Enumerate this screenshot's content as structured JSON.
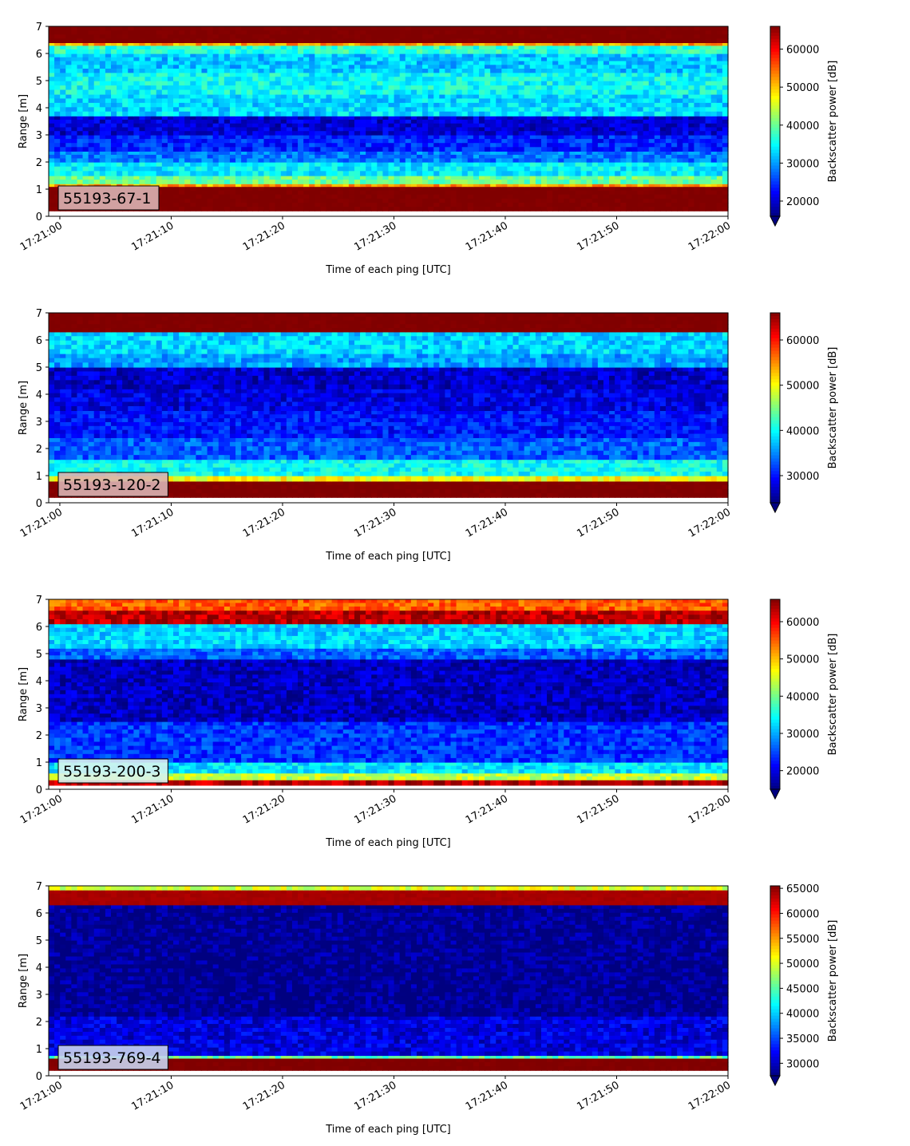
{
  "chart_data": [
    {
      "type": "heatmap",
      "panel_label": "55193-67-1",
      "panel_label_bg": "#d9b3b3",
      "xlabel": "Time of each ping [UTC]",
      "ylabel": "Range [m]",
      "x_ticks": [
        "17:21:00",
        "17:21:10",
        "17:21:20",
        "17:21:30",
        "17:21:40",
        "17:21:50",
        "17:22:00"
      ],
      "xlim": [
        "17:20:59",
        "17:22:00"
      ],
      "ylim": [
        0,
        7
      ],
      "y_ticks": [
        0,
        1,
        2,
        3,
        4,
        5,
        6,
        7
      ],
      "colorbar": {
        "label": "Backscatter power [dB]",
        "range": [
          16000,
          66000
        ],
        "ticks": [
          20000,
          30000,
          40000,
          50000,
          60000
        ],
        "extend": "min"
      },
      "colormap": "jet",
      "bands": [
        {
          "range_m": [
            0,
            0.2
          ],
          "value": 0,
          "blank": true
        },
        {
          "range_m": [
            0.2,
            1.1
          ],
          "value": 66000
        },
        {
          "range_m": [
            1.1,
            1.2
          ],
          "value": 52000
        },
        {
          "range_m": [
            1.2,
            1.5
          ],
          "value": 40000
        },
        {
          "range_m": [
            1.5,
            2.0
          ],
          "value": 34000
        },
        {
          "range_m": [
            2.0,
            2.4
          ],
          "value": 28000
        },
        {
          "range_m": [
            2.4,
            3.0
          ],
          "value": 24000
        },
        {
          "range_m": [
            3.0,
            3.7
          ],
          "value": 20000
        },
        {
          "range_m": [
            3.7,
            4.5
          ],
          "value": 33000
        },
        {
          "range_m": [
            4.5,
            5.3
          ],
          "value": 35000
        },
        {
          "range_m": [
            5.3,
            6.0
          ],
          "value": 32000
        },
        {
          "range_m": [
            6.0,
            6.3
          ],
          "value": 37000
        },
        {
          "range_m": [
            6.3,
            6.4
          ],
          "value": 52000
        },
        {
          "range_m": [
            6.4,
            7.0
          ],
          "value": 66000
        }
      ]
    },
    {
      "type": "heatmap",
      "panel_label": "55193-120-2",
      "panel_label_bg": "#d9b3b3",
      "xlabel": "Time of each ping [UTC]",
      "ylabel": "Range [m]",
      "x_ticks": [
        "17:21:00",
        "17:21:10",
        "17:21:20",
        "17:21:30",
        "17:21:40",
        "17:21:50",
        "17:22:00"
      ],
      "xlim": [
        "17:20:59",
        "17:22:00"
      ],
      "ylim": [
        0,
        7
      ],
      "y_ticks": [
        0,
        1,
        2,
        3,
        4,
        5,
        6,
        7
      ],
      "colorbar": {
        "label": "Backscatter power [dB]",
        "range": [
          24000,
          66000
        ],
        "ticks": [
          30000,
          40000,
          50000,
          60000
        ],
        "extend": "min"
      },
      "colormap": "jet",
      "bands": [
        {
          "range_m": [
            0,
            0.2
          ],
          "value": 0,
          "blank": true
        },
        {
          "range_m": [
            0.2,
            0.8
          ],
          "value": 66000
        },
        {
          "range_m": [
            0.8,
            1.0
          ],
          "value": 50000
        },
        {
          "range_m": [
            1.0,
            1.6
          ],
          "value": 40000
        },
        {
          "range_m": [
            1.6,
            2.4
          ],
          "value": 33000
        },
        {
          "range_m": [
            2.4,
            3.4
          ],
          "value": 30000
        },
        {
          "range_m": [
            3.4,
            4.2
          ],
          "value": 28000
        },
        {
          "range_m": [
            4.2,
            5.0
          ],
          "value": 27000
        },
        {
          "range_m": [
            5.0,
            5.5
          ],
          "value": 36000
        },
        {
          "range_m": [
            5.5,
            6.3
          ],
          "value": 38000
        },
        {
          "range_m": [
            6.3,
            7.0
          ],
          "value": 66000
        }
      ]
    },
    {
      "type": "heatmap",
      "panel_label": "55193-200-3",
      "panel_label_bg": "#d8f3ef",
      "xlabel": "Time of each ping [UTC]",
      "ylabel": "Range [m]",
      "x_ticks": [
        "17:21:00",
        "17:21:10",
        "17:21:20",
        "17:21:30",
        "17:21:40",
        "17:21:50",
        "17:22:00"
      ],
      "xlim": [
        "17:20:59",
        "17:22:00"
      ],
      "ylim": [
        0,
        7
      ],
      "y_ticks": [
        0,
        1,
        2,
        3,
        4,
        5,
        6,
        7
      ],
      "colorbar": {
        "label": "Backscatter power [dB]",
        "range": [
          15000,
          66000
        ],
        "ticks": [
          20000,
          30000,
          40000,
          50000,
          60000
        ],
        "extend": "min"
      },
      "colormap": "jet",
      "bands": [
        {
          "range_m": [
            0,
            0.15
          ],
          "value": 0,
          "blank": true
        },
        {
          "range_m": [
            0.15,
            0.35
          ],
          "value": 63000
        },
        {
          "range_m": [
            0.35,
            0.6
          ],
          "value": 44000
        },
        {
          "range_m": [
            0.6,
            1.0
          ],
          "value": 33000
        },
        {
          "range_m": [
            1.0,
            2.5
          ],
          "value": 24000
        },
        {
          "range_m": [
            2.5,
            4.8
          ],
          "value": 18000
        },
        {
          "range_m": [
            4.8,
            5.2
          ],
          "value": 26000
        },
        {
          "range_m": [
            5.2,
            6.1
          ],
          "value": 32000
        },
        {
          "range_m": [
            6.1,
            6.6
          ],
          "value": 63000
        },
        {
          "range_m": [
            6.6,
            7.0
          ],
          "value": 55000
        }
      ]
    },
    {
      "type": "heatmap",
      "panel_label": "55193-769-4",
      "panel_label_bg": "#c9d3ee",
      "xlabel": "Time of each ping [UTC]",
      "ylabel": "Range [m]",
      "x_ticks": [
        "17:21:00",
        "17:21:10",
        "17:21:20",
        "17:21:30",
        "17:21:40",
        "17:21:50",
        "17:22:00"
      ],
      "xlim": [
        "17:20:59",
        "17:22:00"
      ],
      "ylim": [
        0,
        7
      ],
      "y_ticks": [
        0,
        1,
        2,
        3,
        4,
        5,
        6,
        7
      ],
      "colorbar": {
        "label": "Backscatter power [dB]",
        "range": [
          27500,
          65500
        ],
        "ticks": [
          30000,
          35000,
          40000,
          45000,
          50000,
          55000,
          60000,
          65000
        ],
        "extend": "min"
      },
      "colormap": "jet",
      "bands": [
        {
          "range_m": [
            0,
            0.2
          ],
          "value": 0,
          "blank": true
        },
        {
          "range_m": [
            0.2,
            0.65
          ],
          "value": 65500
        },
        {
          "range_m": [
            0.65,
            0.75
          ],
          "value": 45000
        },
        {
          "range_m": [
            0.75,
            2.2
          ],
          "value": 31000
        },
        {
          "range_m": [
            2.2,
            6.3
          ],
          "value": 28000
        },
        {
          "range_m": [
            6.3,
            6.85
          ],
          "value": 64000
        },
        {
          "range_m": [
            6.85,
            7.0
          ],
          "value": 50000
        }
      ]
    }
  ]
}
